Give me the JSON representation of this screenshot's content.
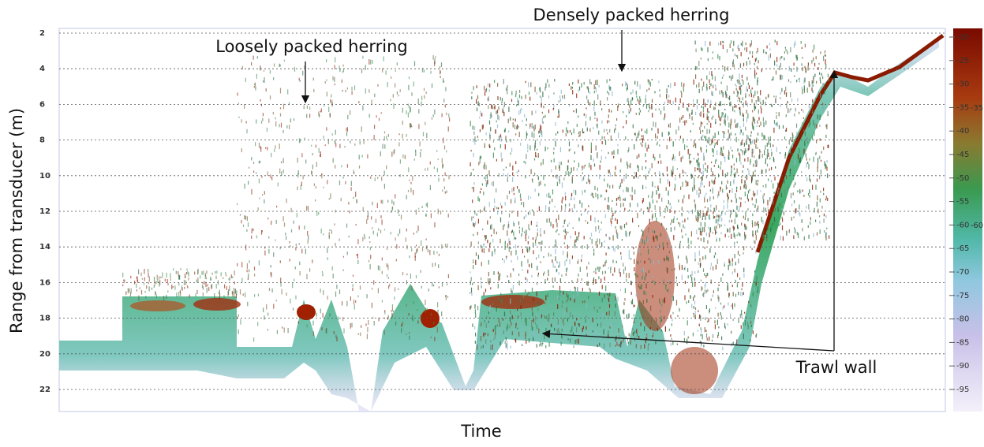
{
  "y_axis": {
    "label": "Range from transducer (m)",
    "ticks": [
      2,
      4,
      6,
      8,
      10,
      12,
      14,
      16,
      18,
      20,
      22
    ]
  },
  "x_axis": {
    "label": "Time"
  },
  "annotations": [
    "Loosely packed herring",
    "Densely packed herring",
    "Trawl wall"
  ],
  "colorbar": {
    "ticks": [
      -20,
      -25,
      -30,
      -35,
      -40,
      -45,
      -50,
      -55,
      -60,
      -65,
      -70,
      -75,
      -80,
      -85,
      -90,
      -95
    ],
    "markers": [
      -35,
      -60
    ]
  }
}
